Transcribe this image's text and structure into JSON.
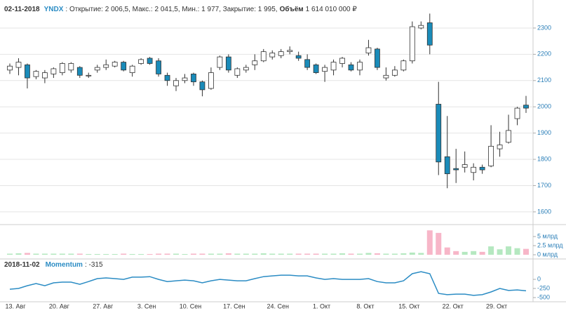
{
  "header": {
    "date": "02-11-2018",
    "ticker": "YNDX",
    "ohlc_text": ": Открытие: 2 006,5, Макс.: 2 041,5, Мин.: 1 977, Закрытие: 1 995,",
    "volume_label": "Объём",
    "volume_text": "1 614 010 000 ₽"
  },
  "chart_data": [
    {
      "type": "candlestick",
      "up_color": "#ffffff",
      "down_color": "#1a8bb9",
      "edge_color": "#333333",
      "categories": [
        "13. Авг",
        null,
        null,
        null,
        null,
        "20. Авг",
        null,
        null,
        null,
        null,
        "27. Авг",
        null,
        null,
        null,
        null,
        "3. Сен",
        null,
        null,
        null,
        null,
        "10. Сен",
        null,
        null,
        null,
        null,
        "17. Сен",
        null,
        null,
        null,
        null,
        "24. Сен",
        null,
        null,
        null,
        null,
        "1. Окт",
        null,
        null,
        null,
        null,
        "8. Окт",
        null,
        null,
        null,
        null,
        "15. Окт",
        null,
        null,
        null,
        null,
        "22. Окт",
        null,
        null,
        null,
        null,
        "29. Окт",
        null,
        null,
        null,
        null
      ],
      "open": [
        2140,
        2150,
        2160,
        2115,
        2110,
        2125,
        2130,
        2140,
        2150,
        2120,
        2140,
        2150,
        2155,
        2170,
        2130,
        2165,
        2185,
        2175,
        2120,
        2080,
        2100,
        2125,
        2095,
        2070,
        2150,
        2190,
        2120,
        2140,
        2160,
        2175,
        2190,
        2195,
        2210,
        2195,
        2180,
        2160,
        2135,
        2140,
        2165,
        2160,
        2140,
        2205,
        2220,
        2110,
        2120,
        2140,
        2175,
        2300,
        2320,
        2010,
        1810,
        1765,
        1770,
        1750,
        1770,
        1775,
        1840,
        1865,
        1955,
        2006.5
      ],
      "high": [
        2165,
        2185,
        2165,
        2140,
        2140,
        2150,
        2170,
        2170,
        2155,
        2130,
        2160,
        2180,
        2175,
        2175,
        2160,
        2185,
        2190,
        2185,
        2130,
        2110,
        2125,
        2130,
        2100,
        2150,
        2195,
        2200,
        2150,
        2160,
        2200,
        2220,
        2215,
        2220,
        2230,
        2210,
        2200,
        2165,
        2160,
        2180,
        2190,
        2170,
        2180,
        2255,
        2225,
        2150,
        2155,
        2180,
        2325,
        2325,
        2355,
        2095,
        1965,
        1840,
        1830,
        1785,
        1780,
        1930,
        1905,
        1970,
        2000,
        2041.5
      ],
      "low": [
        2125,
        2120,
        2070,
        2105,
        2090,
        2110,
        2120,
        2130,
        2110,
        2110,
        2130,
        2140,
        2150,
        2135,
        2115,
        2160,
        2160,
        2115,
        2080,
        2060,
        2090,
        2080,
        2040,
        2065,
        2140,
        2130,
        2110,
        2130,
        2140,
        2170,
        2180,
        2185,
        2200,
        2175,
        2140,
        2125,
        2095,
        2120,
        2150,
        2135,
        2120,
        2195,
        2140,
        2100,
        2115,
        2135,
        2165,
        2295,
        2200,
        1740,
        1690,
        1710,
        1750,
        1720,
        1745,
        1770,
        1810,
        1860,
        1930,
        1977
      ],
      "close": [
        2155,
        2170,
        2110,
        2135,
        2130,
        2145,
        2165,
        2165,
        2120,
        2120,
        2150,
        2160,
        2170,
        2140,
        2155,
        2180,
        2165,
        2125,
        2100,
        2100,
        2110,
        2095,
        2065,
        2130,
        2190,
        2140,
        2145,
        2150,
        2175,
        2210,
        2205,
        2210,
        2215,
        2185,
        2150,
        2130,
        2150,
        2170,
        2185,
        2140,
        2170,
        2225,
        2150,
        2120,
        2140,
        2175,
        2305,
        2310,
        2235,
        1790,
        1745,
        1760,
        1780,
        1770,
        1760,
        1850,
        1855,
        1910,
        1995,
        1995
      ],
      "ylim": [
        1557,
        2380
      ],
      "yticks": [
        1600,
        1700,
        1800,
        1900,
        2000,
        2100,
        2200,
        2300
      ],
      "grid": true
    },
    {
      "type": "bar",
      "up_color": "#b5e8c0",
      "down_color": "#f7b6c8",
      "values": [
        0.3,
        0.4,
        0.5,
        0.3,
        0.3,
        0.3,
        0.3,
        0.3,
        0.3,
        0.2,
        0.2,
        0.2,
        0.2,
        0.3,
        0.2,
        0.2,
        0.2,
        0.3,
        0.3,
        0.3,
        0.2,
        0.3,
        0.3,
        0.3,
        0.3,
        0.4,
        0.3,
        0.3,
        0.3,
        0.4,
        0.3,
        0.3,
        0.3,
        0.3,
        0.3,
        0.3,
        0.3,
        0.3,
        0.4,
        0.3,
        0.3,
        0.5,
        0.4,
        0.3,
        0.3,
        0.4,
        0.6,
        0.5,
        6.7,
        6.0,
        2.0,
        1.0,
        0.8,
        1.0,
        0.8,
        2.3,
        1.5,
        2.3,
        1.8,
        1.614
      ],
      "ylim": [
        0,
        7.9
      ],
      "yticks": [
        {
          "value": 0,
          "label": "0 млрд"
        },
        {
          "value": 2.5,
          "label": "2.5 млрд"
        },
        {
          "value": 5,
          "label": "5 млрд"
        }
      ]
    },
    {
      "type": "line",
      "date": "2018-11-02",
      "name": "Momentum",
      "text": ": -315",
      "color": "#2b8cc4",
      "values": [
        -270,
        -250,
        -175,
        -115,
        -175,
        -95,
        -75,
        -75,
        -135,
        -60,
        20,
        40,
        20,
        0,
        60,
        60,
        75,
        0,
        -60,
        -40,
        -20,
        -40,
        -95,
        -40,
        0,
        -20,
        -40,
        -40,
        20,
        75,
        95,
        115,
        115,
        95,
        95,
        40,
        0,
        20,
        0,
        0,
        0,
        20,
        -60,
        -95,
        -95,
        -40,
        155,
        210,
        155,
        -385,
        -420,
        -405,
        -405,
        -440,
        -420,
        -345,
        -250,
        -305,
        -290,
        -315
      ],
      "ylim": [
        -615,
        290
      ],
      "yticks": [
        {
          "value": -500,
          "label": "-500"
        },
        {
          "value": -250,
          "label": "-250"
        },
        0
      ]
    }
  ]
}
